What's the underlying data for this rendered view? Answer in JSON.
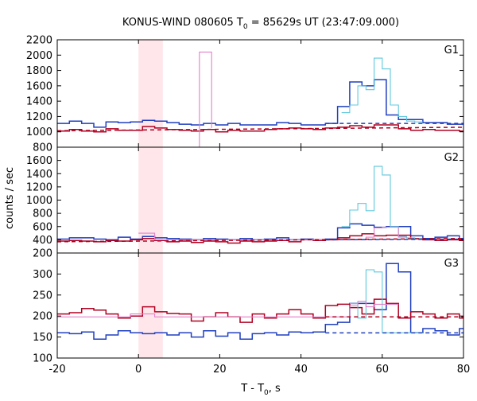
{
  "title_main": "KONUS-WIND 080605 T",
  "title_sub": "0",
  "title_rest": " = 85629s UT (23:47:09.000)",
  "xlabel_main": "T - T",
  "xlabel_sub": "0",
  "xlabel_rest": ", s",
  "ylabel": "counts / sec",
  "colors": {
    "blue": "#1f3fbf",
    "red": "#b00020",
    "cyan": "#5fc8dc",
    "pink": "#e27fc8",
    "shade": "#ffd6dc"
  },
  "chart_data": [
    {
      "type": "line",
      "panel": "G1",
      "xlim": [
        -20,
        80
      ],
      "ylim": [
        800,
        2200
      ],
      "yticks": [
        800,
        1000,
        1200,
        1400,
        1600,
        1800,
        2000,
        2200
      ],
      "xticks": [
        -20,
        0,
        20,
        40,
        60,
        80
      ],
      "shaded_interval": [
        0,
        6
      ],
      "series": [
        {
          "color": "blue",
          "style": "step",
          "x": [
            -20,
            -17,
            -14,
            -11,
            -8,
            -5,
            -2,
            1,
            4,
            7,
            10,
            13,
            16,
            19,
            22,
            25,
            28,
            31,
            34,
            37,
            40,
            43,
            46,
            49,
            52,
            55,
            58,
            61,
            64,
            67,
            70,
            73,
            76,
            79,
            80
          ],
          "y": [
            1110,
            1140,
            1110,
            1060,
            1130,
            1120,
            1130,
            1150,
            1140,
            1120,
            1100,
            1090,
            1110,
            1090,
            1110,
            1090,
            1090,
            1090,
            1120,
            1110,
            1090,
            1090,
            1110,
            1330,
            1650,
            1600,
            1680,
            1220,
            1160,
            1160,
            1120,
            1120,
            1100,
            1100,
            1100
          ]
        },
        {
          "color": "red",
          "style": "step",
          "x": [
            -20,
            -17,
            -14,
            -11,
            -8,
            -5,
            -2,
            1,
            4,
            7,
            10,
            13,
            16,
            19,
            22,
            25,
            28,
            31,
            34,
            37,
            40,
            43,
            46,
            49,
            52,
            55,
            58,
            61,
            64,
            67,
            70,
            73,
            76,
            79,
            80
          ],
          "y": [
            1010,
            1030,
            1010,
            1000,
            1040,
            1020,
            1020,
            1070,
            1050,
            1030,
            1020,
            1010,
            1030,
            1000,
            1020,
            1010,
            1010,
            1030,
            1040,
            1050,
            1040,
            1030,
            1050,
            1060,
            1080,
            1060,
            1090,
            1090,
            1040,
            1020,
            1030,
            1020,
            1020,
            1010,
            1010
          ]
        },
        {
          "color": "cyan",
          "style": "step",
          "x": [
            50,
            52,
            54,
            56,
            58,
            60,
            62,
            64,
            66,
            68,
            70
          ],
          "y": [
            1250,
            1350,
            1600,
            1550,
            1960,
            1820,
            1350,
            1200,
            1140,
            1130,
            1130
          ]
        },
        {
          "color": "pink",
          "style": "step",
          "x": [
            15,
            18
          ],
          "y": [
            2040,
            2040
          ]
        },
        {
          "color": "blue",
          "style": "dash",
          "x": [
            46,
            80
          ],
          "y": [
            1110,
            1110
          ]
        },
        {
          "color": "red",
          "style": "dash",
          "x": [
            -20,
            80
          ],
          "y": [
            1015,
            1060
          ]
        }
      ]
    },
    {
      "type": "line",
      "panel": "G2",
      "xlim": [
        -20,
        80
      ],
      "ylim": [
        200,
        1800
      ],
      "yticks": [
        200,
        400,
        600,
        800,
        1000,
        1200,
        1400,
        1600
      ],
      "xticks": [
        -20,
        0,
        20,
        40,
        60,
        80
      ],
      "shaded_interval": [
        0,
        6
      ],
      "series": [
        {
          "color": "blue",
          "style": "step",
          "x": [
            -20,
            -17,
            -14,
            -11,
            -8,
            -5,
            -2,
            1,
            4,
            7,
            10,
            13,
            16,
            19,
            22,
            25,
            28,
            31,
            34,
            37,
            40,
            43,
            46,
            49,
            52,
            55,
            58,
            61,
            64,
            67,
            70,
            73,
            76,
            79,
            80
          ],
          "y": [
            410,
            430,
            430,
            410,
            400,
            440,
            410,
            450,
            430,
            420,
            410,
            400,
            420,
            410,
            400,
            420,
            400,
            410,
            430,
            400,
            410,
            400,
            410,
            580,
            640,
            620,
            590,
            600,
            600,
            460,
            420,
            440,
            460,
            420,
            420
          ]
        },
        {
          "color": "red",
          "style": "step",
          "x": [
            -20,
            -17,
            -14,
            -11,
            -8,
            -5,
            -2,
            1,
            4,
            7,
            10,
            13,
            16,
            19,
            22,
            25,
            28,
            31,
            34,
            37,
            40,
            43,
            46,
            49,
            52,
            55,
            58,
            61,
            64,
            67,
            70,
            73,
            76,
            79,
            80
          ],
          "y": [
            380,
            390,
            380,
            370,
            390,
            380,
            400,
            420,
            390,
            370,
            380,
            360,
            380,
            370,
            350,
            380,
            370,
            380,
            390,
            370,
            400,
            390,
            400,
            430,
            460,
            490,
            460,
            470,
            470,
            420,
            400,
            390,
            400,
            390,
            390
          ]
        },
        {
          "color": "cyan",
          "style": "step",
          "x": [
            50,
            52,
            54,
            56,
            58,
            60,
            62,
            64,
            66,
            68,
            70
          ],
          "y": [
            600,
            850,
            950,
            840,
            1510,
            1380,
            600,
            450,
            430,
            420,
            420
          ]
        },
        {
          "color": "pink",
          "style": "step",
          "x": [
            0,
            2,
            4,
            56,
            58,
            60,
            62,
            64,
            66
          ],
          "y": [
            500,
            500,
            400,
            440,
            580,
            590,
            590,
            440,
            440
          ]
        },
        {
          "color": "blue",
          "style": "dash",
          "x": [
            46,
            80
          ],
          "y": [
            400,
            410
          ]
        },
        {
          "color": "red",
          "style": "dash",
          "x": [
            -20,
            80
          ],
          "y": [
            370,
            420
          ]
        }
      ]
    },
    {
      "type": "line",
      "panel": "G3",
      "xlim": [
        -20,
        80
      ],
      "ylim": [
        100,
        350
      ],
      "yticks": [
        100,
        150,
        200,
        250,
        300
      ],
      "xticks": [
        -20,
        0,
        20,
        40,
        60,
        80
      ],
      "shaded_interval": [
        0,
        6
      ],
      "series": [
        {
          "color": "blue",
          "style": "step",
          "x": [
            -20,
            -17,
            -14,
            -11,
            -8,
            -5,
            -2,
            1,
            4,
            7,
            10,
            13,
            16,
            19,
            22,
            25,
            28,
            31,
            34,
            37,
            40,
            43,
            46,
            49,
            52,
            55,
            58,
            61,
            64,
            67,
            70,
            73,
            76,
            79,
            80
          ],
          "y": [
            160,
            158,
            162,
            145,
            155,
            165,
            160,
            158,
            160,
            155,
            160,
            150,
            165,
            152,
            160,
            145,
            158,
            160,
            155,
            162,
            160,
            162,
            180,
            185,
            230,
            230,
            215,
            325,
            305,
            160,
            170,
            165,
            155,
            170,
            170
          ]
        },
        {
          "color": "red",
          "style": "step",
          "x": [
            -20,
            -17,
            -14,
            -11,
            -8,
            -5,
            -2,
            1,
            4,
            7,
            10,
            13,
            16,
            19,
            22,
            25,
            28,
            31,
            34,
            37,
            40,
            43,
            46,
            49,
            52,
            55,
            58,
            61,
            64,
            67,
            70,
            73,
            76,
            79,
            80
          ],
          "y": [
            205,
            208,
            218,
            214,
            205,
            195,
            200,
            222,
            210,
            206,
            205,
            188,
            198,
            208,
            198,
            185,
            205,
            195,
            205,
            215,
            205,
            195,
            225,
            228,
            220,
            205,
            240,
            230,
            195,
            210,
            205,
            195,
            205,
            195,
            195
          ]
        },
        {
          "color": "cyan",
          "style": "step",
          "x": [
            52,
            54,
            56,
            58,
            60,
            62,
            64,
            66,
            68,
            70
          ],
          "y": [
            230,
            195,
            310,
            305,
            160,
            160,
            160,
            160,
            160,
            160
          ]
        },
        {
          "color": "pink",
          "style": "step",
          "x": [
            -20,
            -5,
            -2,
            1,
            4,
            7,
            50,
            52,
            54,
            56,
            58,
            60,
            62,
            64
          ],
          "y": [
            198,
            198,
            205,
            205,
            198,
            198,
            198,
            225,
            235,
            222,
            228,
            228,
            228,
            198
          ]
        },
        {
          "color": "blue",
          "style": "dash",
          "x": [
            46,
            80
          ],
          "y": [
            160,
            160
          ]
        },
        {
          "color": "red",
          "style": "dash",
          "x": [
            46,
            80
          ],
          "y": [
            198,
            198
          ]
        }
      ]
    }
  ]
}
